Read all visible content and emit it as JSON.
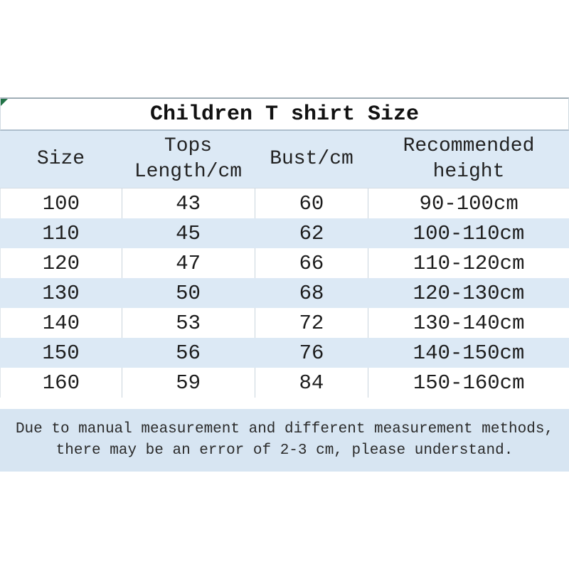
{
  "title": "Children T shirt Size",
  "table": {
    "header": {
      "size": "Size",
      "tops_line1": "Tops",
      "tops_line2": "Length/cm",
      "bust": "Bust/cm",
      "height_line1": "Recommended",
      "height_line2": "height"
    },
    "rows": [
      {
        "size": "100",
        "tops": "43",
        "bust": "60",
        "height": "90-100cm"
      },
      {
        "size": "110",
        "tops": "45",
        "bust": "62",
        "height": "100-110cm"
      },
      {
        "size": "120",
        "tops": "47",
        "bust": "66",
        "height": "110-120cm"
      },
      {
        "size": "130",
        "tops": "50",
        "bust": "68",
        "height": "120-130cm"
      },
      {
        "size": "140",
        "tops": "53",
        "bust": "72",
        "height": "130-140cm"
      },
      {
        "size": "150",
        "tops": "56",
        "bust": "76",
        "height": "140-150cm"
      },
      {
        "size": "160",
        "tops": "59",
        "bust": "84",
        "height": "150-160cm"
      }
    ]
  },
  "footer": {
    "line1": "Due to manual measurement and different measurement methods,",
    "line2": "there may be an error of 2-3 cm, please understand."
  },
  "colors": {
    "row_highlight_blue": "#dce9f5",
    "footer_blue": "#d7e5f2",
    "corner_marker_green": "#217346",
    "grid_border_gray": "#c9d4dc",
    "text_dark": "#1e1e1e"
  },
  "chart_data": {
    "type": "table",
    "title": "Children T shirt Size",
    "columns": [
      "Size",
      "Tops Length/cm",
      "Bust/cm",
      "Recommended height"
    ],
    "rows": [
      [
        "100",
        "43",
        "60",
        "90-100cm"
      ],
      [
        "110",
        "45",
        "62",
        "100-110cm"
      ],
      [
        "120",
        "47",
        "66",
        "110-120cm"
      ],
      [
        "130",
        "50",
        "68",
        "120-130cm"
      ],
      [
        "140",
        "53",
        "72",
        "130-140cm"
      ],
      [
        "150",
        "56",
        "76",
        "140-150cm"
      ],
      [
        "160",
        "59",
        "84",
        "150-160cm"
      ]
    ],
    "note": "Due to manual measurement and different measurement methods, there may be an error of 2-3 cm, please understand.",
    "layout": "alternating white and light-blue rows; vertical gridlines on white rows only; note block below table"
  }
}
